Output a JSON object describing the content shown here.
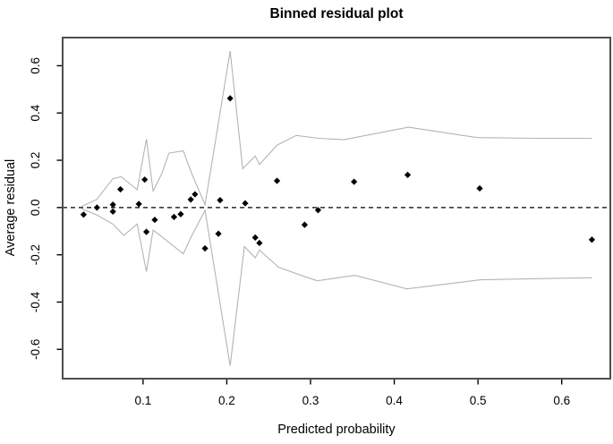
{
  "figure": {
    "background": "#ffffff",
    "border_color": "#4d4d4d"
  },
  "chart_data": {
    "type": "scatter",
    "title": "Binned residual plot",
    "xlabel": "Predicted probability",
    "ylabel": "Average residual",
    "xlim": [
      0.004,
      0.658
    ],
    "ylim": [
      -0.724,
      0.719
    ],
    "x_ticks": [
      0.1,
      0.2,
      0.3,
      0.4,
      0.5,
      0.6
    ],
    "y_ticks": [
      -0.6,
      -0.4,
      -0.2,
      0.0,
      0.2,
      0.4,
      0.6
    ],
    "grid": false,
    "legend": "none",
    "zero_line_y": 0,
    "point_color": "#000000",
    "band_color": "#b4b4b4",
    "series": [
      {
        "name": "bin-average-residuals",
        "marker": "diamond",
        "points": [
          [
            0.029,
            -0.03
          ],
          [
            0.045,
            0.0
          ],
          [
            0.064,
            0.012
          ],
          [
            0.064,
            -0.017
          ],
          [
            0.073,
            0.077
          ],
          [
            0.095,
            0.015
          ],
          [
            0.102,
            0.118
          ],
          [
            0.104,
            -0.103
          ],
          [
            0.114,
            -0.052
          ],
          [
            0.137,
            -0.04
          ],
          [
            0.145,
            -0.028
          ],
          [
            0.157,
            0.034
          ],
          [
            0.162,
            0.056
          ],
          [
            0.174,
            -0.173
          ],
          [
            0.19,
            -0.111
          ],
          [
            0.192,
            0.031
          ],
          [
            0.204,
            0.462
          ],
          [
            0.222,
            0.018
          ],
          [
            0.234,
            -0.127
          ],
          [
            0.239,
            -0.15
          ],
          [
            0.26,
            0.113
          ],
          [
            0.293,
            -0.073
          ],
          [
            0.309,
            -0.011
          ],
          [
            0.352,
            0.109
          ],
          [
            0.416,
            0.138
          ],
          [
            0.502,
            0.081
          ],
          [
            0.636,
            -0.136
          ]
        ]
      },
      {
        "name": "upper-2se-band",
        "marker": "none",
        "points": [
          [
            0.027,
            0.005
          ],
          [
            0.045,
            0.035
          ],
          [
            0.064,
            0.122
          ],
          [
            0.074,
            0.13
          ],
          [
            0.093,
            0.075
          ],
          [
            0.104,
            0.29
          ],
          [
            0.112,
            0.07
          ],
          [
            0.122,
            0.14
          ],
          [
            0.131,
            0.23
          ],
          [
            0.148,
            0.24
          ],
          [
            0.158,
            0.145
          ],
          [
            0.174,
            0.012
          ],
          [
            0.204,
            0.662
          ],
          [
            0.219,
            0.164
          ],
          [
            0.234,
            0.218
          ],
          [
            0.239,
            0.182
          ],
          [
            0.26,
            0.264
          ],
          [
            0.283,
            0.305
          ],
          [
            0.31,
            0.293
          ],
          [
            0.34,
            0.287
          ],
          [
            0.417,
            0.34
          ],
          [
            0.499,
            0.296
          ],
          [
            0.57,
            0.293
          ],
          [
            0.636,
            0.293
          ]
        ]
      },
      {
        "name": "lower-2se-band",
        "marker": "none",
        "points": [
          [
            0.027,
            -0.005
          ],
          [
            0.045,
            -0.032
          ],
          [
            0.064,
            -0.07
          ],
          [
            0.077,
            -0.118
          ],
          [
            0.093,
            -0.07
          ],
          [
            0.104,
            -0.271
          ],
          [
            0.112,
            -0.095
          ],
          [
            0.13,
            -0.145
          ],
          [
            0.148,
            -0.196
          ],
          [
            0.157,
            -0.127
          ],
          [
            0.174,
            -0.012
          ],
          [
            0.204,
            -0.67
          ],
          [
            0.221,
            -0.165
          ],
          [
            0.234,
            -0.213
          ],
          [
            0.239,
            -0.18
          ],
          [
            0.262,
            -0.253
          ],
          [
            0.292,
            -0.291
          ],
          [
            0.308,
            -0.31
          ],
          [
            0.353,
            -0.287
          ],
          [
            0.415,
            -0.344
          ],
          [
            0.503,
            -0.306
          ],
          [
            0.57,
            -0.301
          ],
          [
            0.636,
            -0.297
          ]
        ]
      }
    ]
  }
}
